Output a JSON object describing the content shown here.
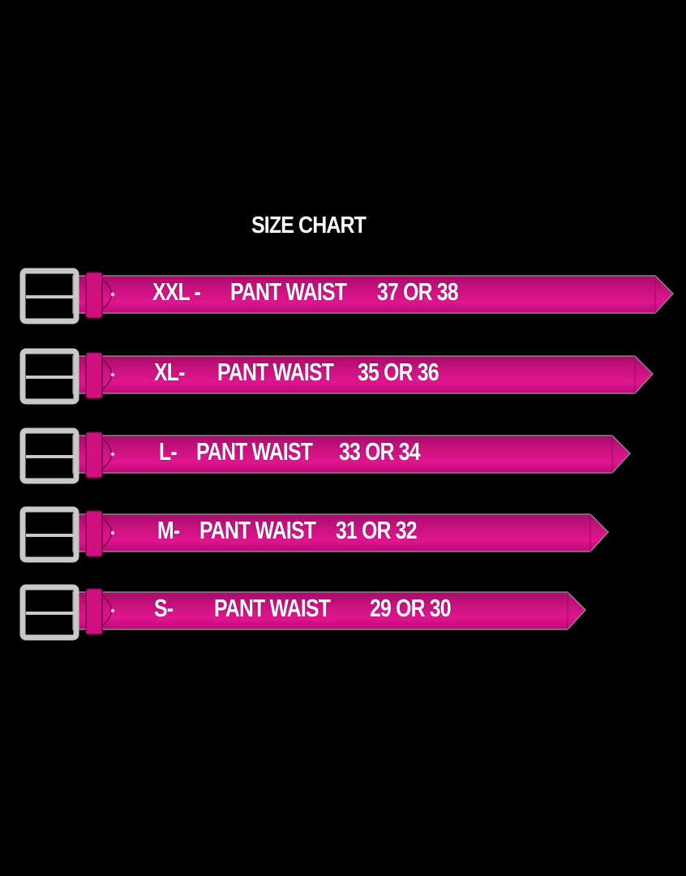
{
  "title": "SIZE CHART",
  "colors": {
    "background": "#000000",
    "belt": "#e0158f",
    "belt_dark": "#a80a6a",
    "buckle": "#c8c8c8",
    "text": "#ffffff"
  },
  "belts": [
    {
      "size": "XXL -",
      "label": "PANT WAIST",
      "waist": "37 OR 38"
    },
    {
      "size": "XL-",
      "label": "PANT WAIST",
      "waist": "35 OR 36"
    },
    {
      "size": "L-",
      "label": "PANT WAIST",
      "waist": "33 OR 34"
    },
    {
      "size": "M-",
      "label": "PANT WAIST",
      "waist": "31 OR 32"
    },
    {
      "size": "S-",
      "label": "PANT WAIST",
      "waist": "29 OR 30"
    }
  ]
}
